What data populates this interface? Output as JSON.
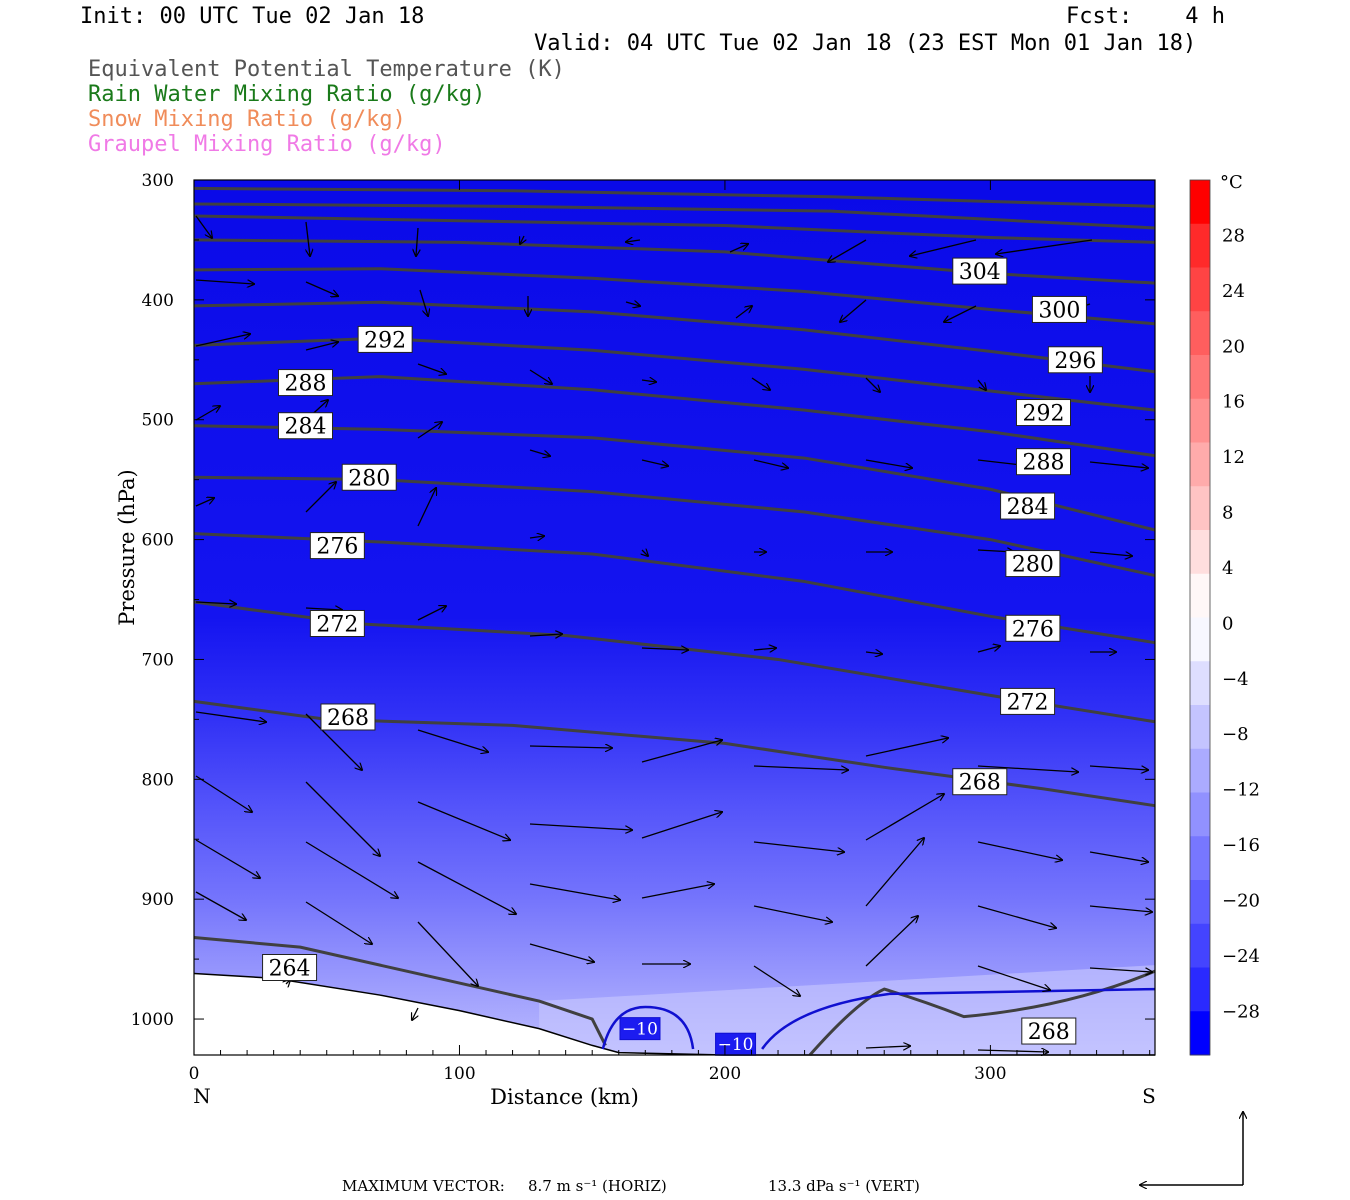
{
  "header": {
    "init": "Init: 00 UTC Tue 02 Jan 18",
    "fcst": "Fcst:    4 h",
    "valid": "Valid: 04 UTC Tue 02 Jan 18 (23 EST Mon 01 Jan 18)",
    "legend": [
      {
        "label": "Equivalent Potential Temperature (K)",
        "color": "#555555"
      },
      {
        "label": "Rain Water Mixing Ratio (g/kg)",
        "color": "#1a7a1a"
      },
      {
        "label": "Snow Mixing Ratio (g/kg)",
        "color": "#f08c5a"
      },
      {
        "label": "Graupel Mixing Ratio (g/kg)",
        "color": "#f07ae6"
      }
    ]
  },
  "chart_data": {
    "type": "contour",
    "xlabel": "Distance (km)",
    "ylabel": "Pressure (hPa)",
    "xlim": [
      0,
      362
    ],
    "ylim": [
      300,
      1030
    ],
    "x_ticks": [
      0,
      100,
      200,
      300
    ],
    "y_ticks": [
      300,
      400,
      500,
      600,
      700,
      800,
      900,
      1000
    ],
    "x_end_labels": {
      "left": "N",
      "right": "S"
    },
    "colorbar": {
      "unit": "°C",
      "ticks": [
        "28",
        "24",
        "20",
        "16",
        "12",
        "8",
        "4",
        "0",
        "−4",
        "−8",
        "−12",
        "−16",
        "−20",
        "−24",
        "−28"
      ],
      "colors": [
        "#ff0000",
        "#ff2a2a",
        "#ff4444",
        "#ff5e5e",
        "#ff7777",
        "#ff9191",
        "#ffabab",
        "#ffc4c4",
        "#ffdede",
        "#fff7f7",
        "#f7f7ff",
        "#dedeff",
        "#c4c4ff",
        "#ababff",
        "#9191ff",
        "#7777ff",
        "#5e5eff",
        "#4444ff",
        "#2a2aff",
        "#0000ff"
      ]
    },
    "theta_e_contours": [
      {
        "label": "264",
        "points": [
          [
            0,
            932
          ],
          [
            40,
            940
          ],
          [
            90,
            965
          ],
          [
            130,
            985
          ],
          [
            150,
            1000
          ],
          [
            155,
            1022
          ]
        ]
      },
      {
        "label": "268",
        "points": [
          [
            0,
            735
          ],
          [
            50,
            750
          ],
          [
            120,
            755
          ],
          [
            200,
            770
          ],
          [
            260,
            790
          ],
          [
            320,
            808
          ],
          [
            362,
            822
          ]
        ]
      },
      {
        "label": "272",
        "points": [
          [
            0,
            652
          ],
          [
            60,
            670
          ],
          [
            140,
            680
          ],
          [
            220,
            700
          ],
          [
            300,
            730
          ],
          [
            362,
            752
          ]
        ]
      },
      {
        "label": "276",
        "points": [
          [
            0,
            595
          ],
          [
            70,
            602
          ],
          [
            150,
            612
          ],
          [
            230,
            635
          ],
          [
            300,
            664
          ],
          [
            362,
            686
          ]
        ]
      },
      {
        "label": "280",
        "points": [
          [
            0,
            548
          ],
          [
            70,
            550
          ],
          [
            150,
            560
          ],
          [
            230,
            577
          ],
          [
            300,
            600
          ],
          [
            362,
            630
          ]
        ]
      },
      {
        "label": "284",
        "points": [
          [
            0,
            505
          ],
          [
            70,
            508
          ],
          [
            150,
            515
          ],
          [
            230,
            532
          ],
          [
            300,
            558
          ],
          [
            362,
            592
          ]
        ]
      },
      {
        "label": "288",
        "points": [
          [
            0,
            470
          ],
          [
            70,
            464
          ],
          [
            150,
            475
          ],
          [
            230,
            492
          ],
          [
            300,
            510
          ],
          [
            362,
            530
          ]
        ]
      },
      {
        "label": "292",
        "points": [
          [
            0,
            438
          ],
          [
            70,
            432
          ],
          [
            150,
            442
          ],
          [
            230,
            458
          ],
          [
            300,
            476
          ],
          [
            362,
            492
          ]
        ]
      },
      {
        "label": "296",
        "points": [
          [
            0,
            405
          ],
          [
            70,
            402
          ],
          [
            150,
            410
          ],
          [
            230,
            425
          ],
          [
            300,
            443
          ],
          [
            362,
            460
          ]
        ]
      },
      {
        "label": "300",
        "points": [
          [
            0,
            375
          ],
          [
            70,
            374
          ],
          [
            150,
            382
          ],
          [
            230,
            393
          ],
          [
            300,
            408
          ],
          [
            362,
            420
          ]
        ]
      },
      {
        "label": "304",
        "points": [
          [
            0,
            350
          ],
          [
            100,
            352
          ],
          [
            200,
            360
          ],
          [
            300,
            378
          ],
          [
            362,
            386
          ]
        ]
      },
      {
        "label": "",
        "points": [
          [
            0,
            330
          ],
          [
            100,
            334
          ],
          [
            200,
            338
          ],
          [
            300,
            348
          ],
          [
            362,
            352
          ]
        ]
      },
      {
        "label": "",
        "points": [
          [
            0,
            320
          ],
          [
            120,
            322
          ],
          [
            240,
            326
          ],
          [
            362,
            340
          ]
        ]
      },
      {
        "label": "",
        "points": [
          [
            0,
            307
          ],
          [
            120,
            309
          ],
          [
            240,
            314
          ],
          [
            362,
            322
          ]
        ]
      }
    ],
    "contour_labels": [
      {
        "text": "304",
        "x": 296,
        "y": 376
      },
      {
        "text": "300",
        "x": 326,
        "y": 408
      },
      {
        "text": "296",
        "x": 332,
        "y": 450
      },
      {
        "text": "292",
        "x": 72,
        "y": 433
      },
      {
        "text": "292",
        "x": 320,
        "y": 494
      },
      {
        "text": "288",
        "x": 42,
        "y": 469
      },
      {
        "text": "288",
        "x": 320,
        "y": 535
      },
      {
        "text": "284",
        "x": 42,
        "y": 505
      },
      {
        "text": "284",
        "x": 314,
        "y": 572
      },
      {
        "text": "280",
        "x": 66,
        "y": 548
      },
      {
        "text": "280",
        "x": 316,
        "y": 620
      },
      {
        "text": "276",
        "x": 54,
        "y": 605
      },
      {
        "text": "276",
        "x": 316,
        "y": 674
      },
      {
        "text": "272",
        "x": 54,
        "y": 670
      },
      {
        "text": "272",
        "x": 314,
        "y": 735
      },
      {
        "text": "268",
        "x": 58,
        "y": 748
      },
      {
        "text": "268",
        "x": 296,
        "y": 802
      },
      {
        "text": "264",
        "x": 36,
        "y": 957
      },
      {
        "text": "268",
        "x": 322,
        "y": 1010
      }
    ],
    "isotherm": {
      "label": "−10",
      "color": "#1010d0",
      "labels": [
        {
          "x": 168,
          "y": 1008
        },
        {
          "x": 204,
          "y": 1021
        }
      ]
    },
    "vectors_note": "wind vectors in the N–S section plane",
    "max_vector": {
      "label": "MAXIMUM VECTOR:",
      "horiz": "8.7 m s⁻¹ (HORIZ)",
      "vert": "13.3 dPa s⁻¹ (VERT)"
    }
  }
}
